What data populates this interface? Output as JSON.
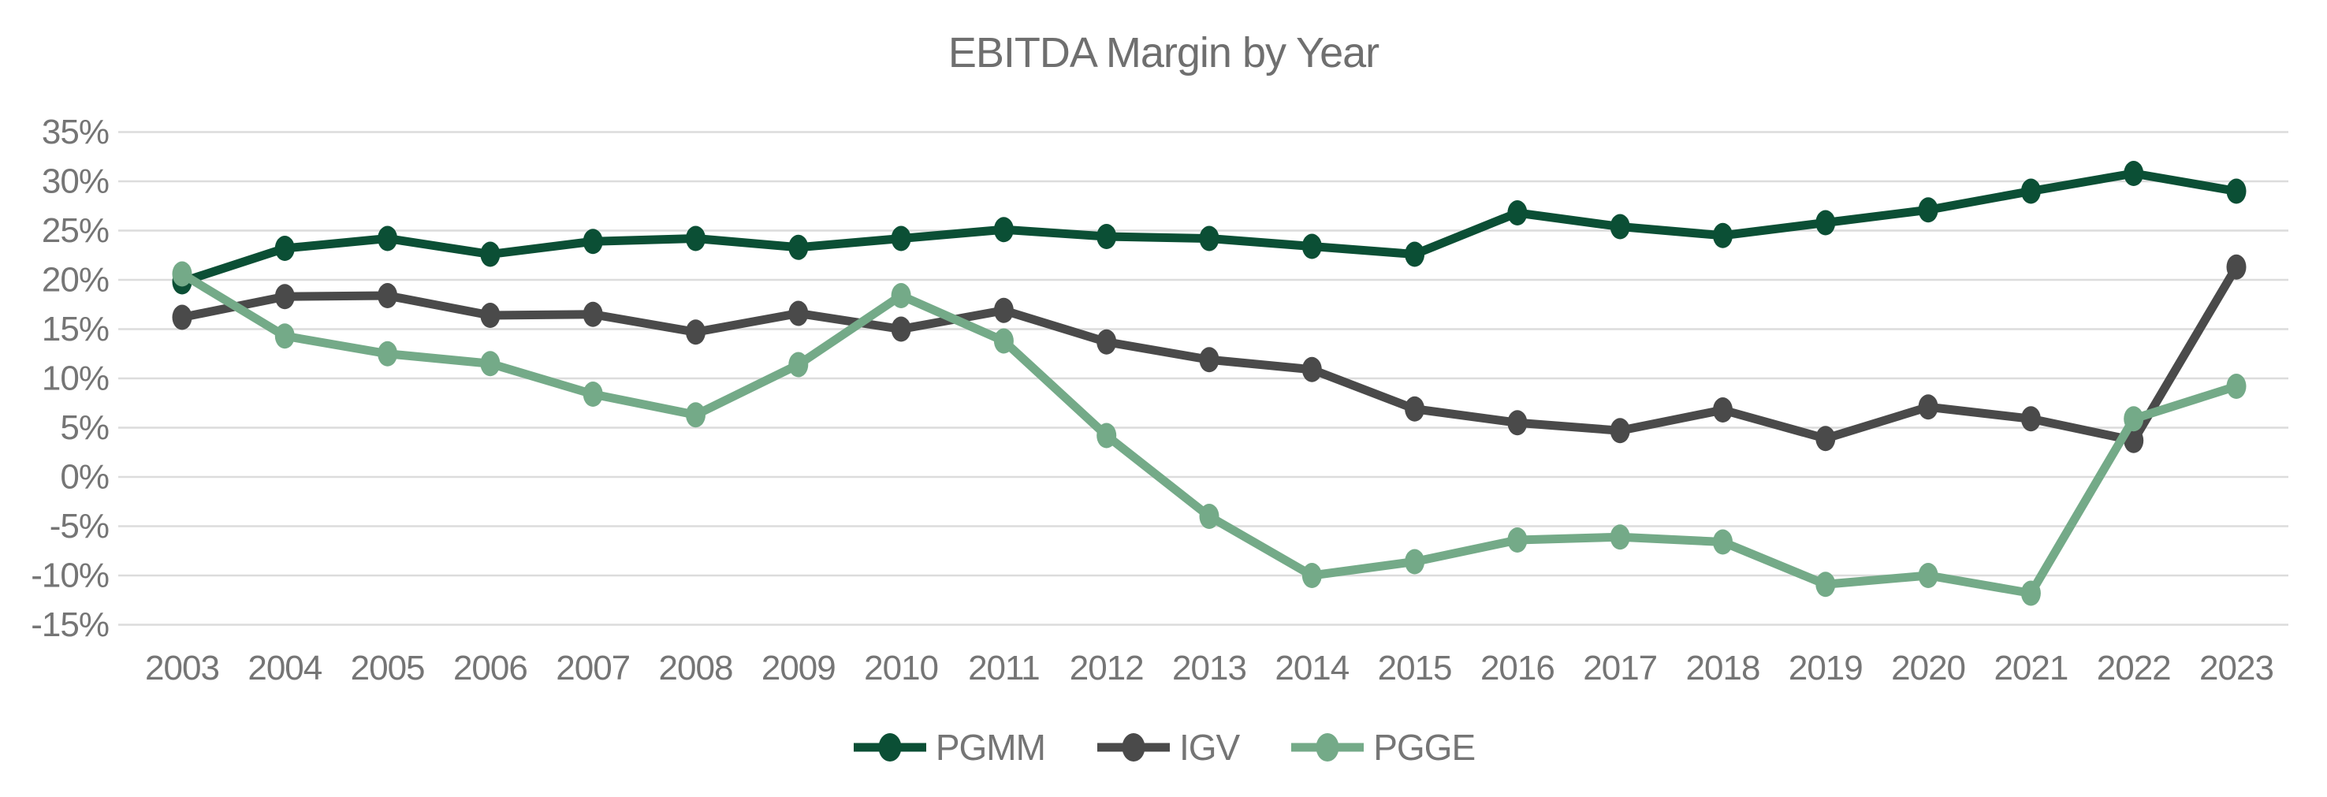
{
  "chart": {
    "title": "EBITDA Margin by Year",
    "background_color": "#ffffff",
    "title_color": "#6f6f6f",
    "tick_label_color": "#757575",
    "gridline_color": "#dcdcdc"
  },
  "chart_data": {
    "type": "line",
    "title": "EBITDA Margin by Year",
    "x": [
      2003,
      2004,
      2005,
      2006,
      2007,
      2008,
      2009,
      2010,
      2011,
      2012,
      2013,
      2014,
      2015,
      2016,
      2017,
      2018,
      2019,
      2020,
      2021,
      2022,
      2023
    ],
    "x_tick_labels": [
      "2003",
      "2004",
      "2005",
      "2006",
      "2007",
      "2008",
      "2009",
      "2010",
      "2011",
      "2012",
      "2013",
      "2014",
      "2015",
      "2016",
      "2017",
      "2018",
      "2019",
      "2020",
      "2021",
      "2022",
      "2023"
    ],
    "series": [
      {
        "name": "PGMM",
        "color": "#0b4f35",
        "values": [
          19.8,
          23.2,
          24.2,
          22.6,
          23.9,
          24.2,
          23.3,
          24.2,
          25.1,
          24.4,
          24.2,
          23.4,
          22.6,
          26.8,
          25.4,
          24.5,
          25.8,
          27.1,
          29.0,
          30.8,
          29.0
        ]
      },
      {
        "name": "IGV",
        "color": "#4a4a4a",
        "values": [
          16.2,
          18.3,
          18.4,
          16.4,
          16.5,
          14.7,
          16.6,
          15.0,
          16.9,
          13.7,
          11.9,
          10.9,
          6.9,
          5.5,
          4.7,
          6.8,
          3.9,
          7.1,
          5.9,
          3.7,
          21.3
        ]
      },
      {
        "name": "PGGE",
        "color": "#74aa88",
        "values": [
          20.6,
          14.3,
          12.5,
          11.5,
          8.4,
          6.3,
          11.4,
          18.4,
          13.8,
          4.2,
          -4.0,
          -10.0,
          -8.6,
          -6.4,
          -6.1,
          -6.6,
          -10.9,
          -10.0,
          -11.8,
          5.9,
          9.2
        ]
      }
    ],
    "ylim": [
      -15,
      35
    ],
    "ytick_step": 5,
    "ytick_labels": [
      "35%",
      "30%",
      "25%",
      "20%",
      "15%",
      "10%",
      "5%",
      "0%",
      "-5%",
      "-10%",
      "-15%"
    ],
    "ylabel_format": "percent",
    "grid": true,
    "legend_position": "bottom"
  }
}
